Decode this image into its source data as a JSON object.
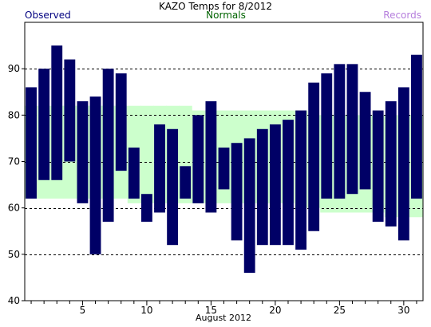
{
  "chart_data": {
    "type": "bar",
    "title": "KAZO Temps for 8/2012",
    "xlabel": "August 2012",
    "ylabel": "",
    "legend": [
      {
        "label": "Observed",
        "color": "#000080"
      },
      {
        "label": "Normals",
        "color": "#006400"
      },
      {
        "label": "Records",
        "color": "#b57edc"
      }
    ],
    "ylim": [
      40,
      100
    ],
    "yticks": [
      40,
      50,
      60,
      70,
      80,
      90
    ],
    "xlim": [
      0.5,
      31.5
    ],
    "xticks": [
      5,
      10,
      15,
      20,
      25,
      30
    ],
    "grid": "horizontal dashed",
    "days": [
      1,
      2,
      3,
      4,
      5,
      6,
      7,
      8,
      9,
      10,
      11,
      12,
      13,
      14,
      15,
      16,
      17,
      18,
      19,
      20,
      21,
      22,
      23,
      24,
      25,
      26,
      27,
      28,
      29,
      30,
      31
    ],
    "series": [
      {
        "name": "Observed",
        "color": "#000066",
        "high": [
          86,
          90,
          95,
          92,
          83,
          84,
          90,
          89,
          73,
          63,
          78,
          77,
          69,
          80,
          83,
          73,
          74,
          75,
          77,
          78,
          79,
          81,
          87,
          89,
          91,
          91,
          85,
          81,
          83,
          86,
          93
        ],
        "low": [
          62,
          66,
          66,
          70,
          61,
          50,
          57,
          68,
          62,
          57,
          59,
          52,
          62,
          61,
          59,
          64,
          53,
          46,
          52,
          52,
          52,
          51,
          55,
          62,
          62,
          63,
          64,
          57,
          56,
          53,
          62
        ]
      },
      {
        "name": "Normals",
        "color": "#ccffcc",
        "high": [
          82,
          82,
          82,
          82,
          82,
          82,
          82,
          82,
          82,
          82,
          82,
          82,
          82,
          81,
          81,
          81,
          81,
          81,
          81,
          81,
          81,
          81,
          80,
          80,
          80,
          80,
          80,
          80,
          80,
          80,
          80
        ],
        "low": [
          62,
          62,
          62,
          62,
          62,
          62,
          62,
          62,
          61,
          61,
          61,
          61,
          61,
          61,
          61,
          61,
          61,
          61,
          61,
          61,
          61,
          60,
          60,
          59,
          59,
          59,
          59,
          59,
          58,
          58,
          58
        ]
      }
    ]
  }
}
